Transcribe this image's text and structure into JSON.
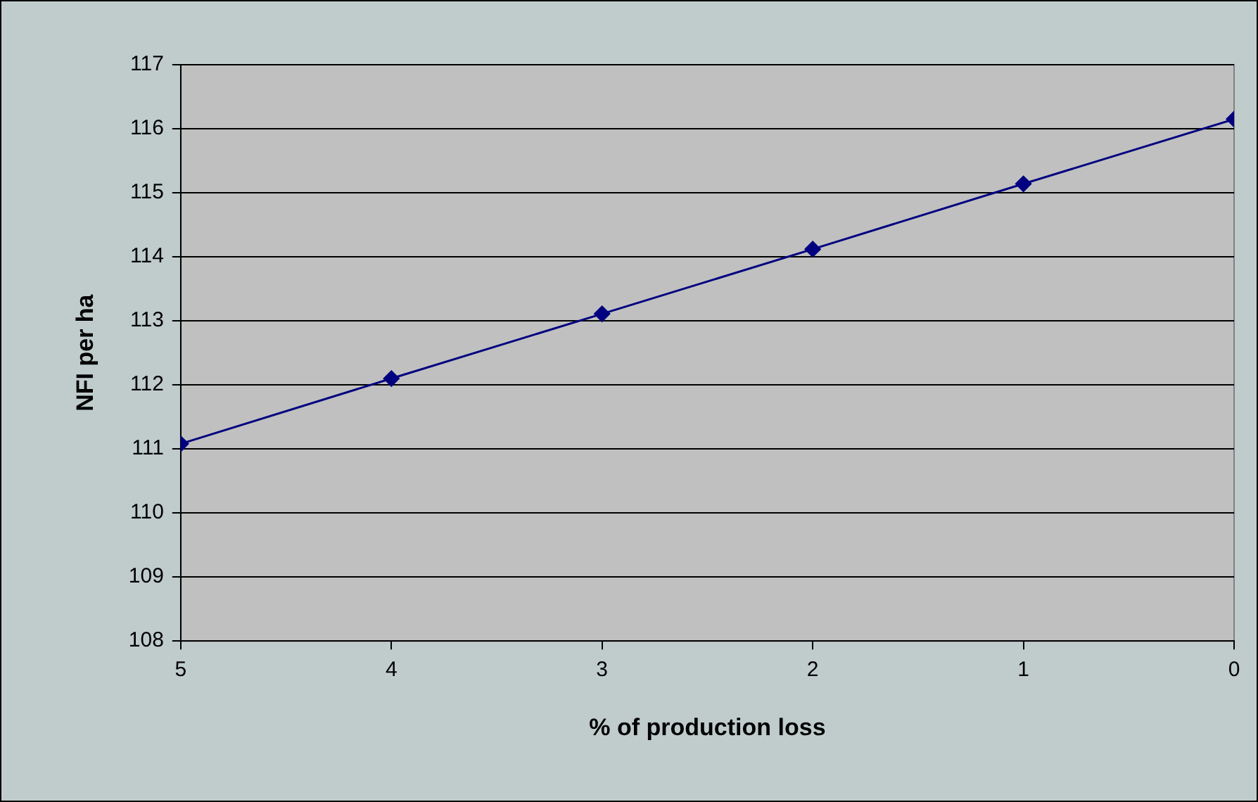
{
  "chart_data": {
    "type": "line",
    "xlabel": "% of production loss",
    "ylabel": "NFI per ha",
    "x": [
      5,
      4,
      3,
      2,
      1,
      0
    ],
    "series": [
      {
        "color": "#000080",
        "values": [
          111.08,
          112.1,
          113.11,
          114.12,
          115.14,
          116.15
        ]
      }
    ],
    "xlim": [
      5,
      0
    ],
    "xticks": [
      5,
      4,
      3,
      2,
      1,
      0
    ],
    "ylim": [
      108,
      117
    ],
    "yticks": [
      108,
      109,
      110,
      111,
      112,
      113,
      114,
      115,
      116,
      117
    ],
    "grid": "y",
    "legend": false,
    "marker": "diamond",
    "line_style": "solid"
  }
}
